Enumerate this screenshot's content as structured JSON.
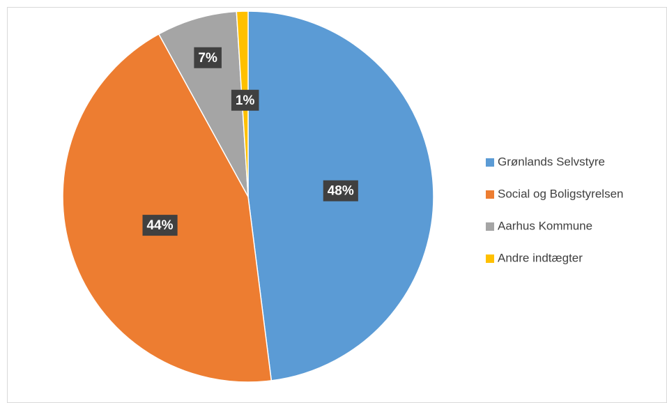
{
  "chart_data": {
    "type": "pie",
    "categories": [
      "Grønlands Selvstyre",
      "Social og Boligstyrelsen",
      "Aarhus Kommune",
      "Andre indtægter"
    ],
    "values": [
      48,
      44,
      7,
      1
    ],
    "value_labels": [
      "48%",
      "44%",
      "7%",
      "1%"
    ],
    "colors": [
      "#5b9bd5",
      "#ed7d31",
      "#a5a5a5",
      "#ffc000"
    ],
    "legend": "right"
  }
}
